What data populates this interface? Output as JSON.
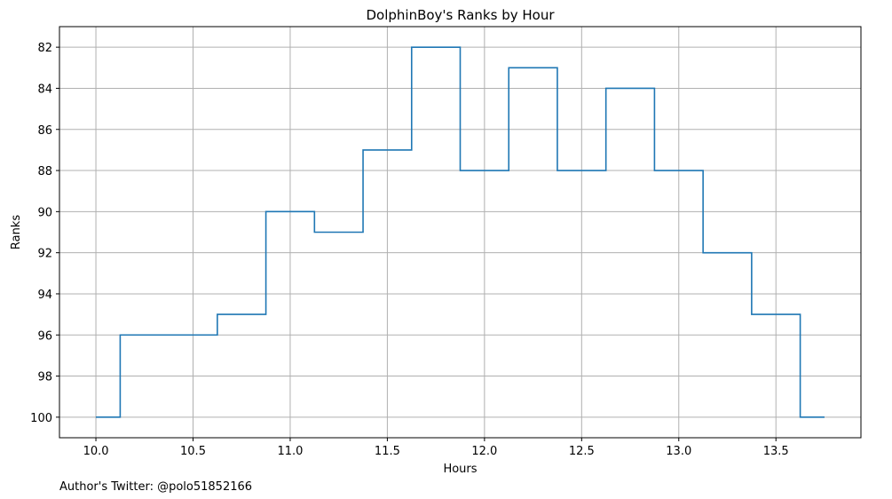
{
  "chart_data": {
    "type": "line",
    "drawstyle": "steps-mid",
    "title": "DolphinBoy's Ranks by Hour",
    "xlabel": "Hours",
    "ylabel": "Ranks",
    "x": [
      10.0,
      10.25,
      10.5,
      10.75,
      11.0,
      11.25,
      11.5,
      11.75,
      12.0,
      12.25,
      12.5,
      12.75,
      13.0,
      13.25,
      13.5,
      13.75
    ],
    "values": [
      100,
      96,
      96,
      95,
      90,
      91,
      87,
      82,
      88,
      83,
      88,
      84,
      88,
      92,
      95,
      100
    ],
    "xlim": [
      9.8125,
      13.9375
    ],
    "ylim": [
      101.0,
      81.0
    ],
    "y_inverted": true,
    "xticks": [
      "10.0",
      "10.5",
      "11.0",
      "11.5",
      "12.0",
      "12.5",
      "13.0",
      "13.5"
    ],
    "yticks": [
      "82",
      "84",
      "86",
      "88",
      "90",
      "92",
      "94",
      "96",
      "98",
      "100"
    ],
    "grid": true,
    "line_color": "#1f77b4",
    "grid_color": "#b0b0b0"
  },
  "footer": {
    "text": "Author's Twitter: @polo51852166"
  }
}
